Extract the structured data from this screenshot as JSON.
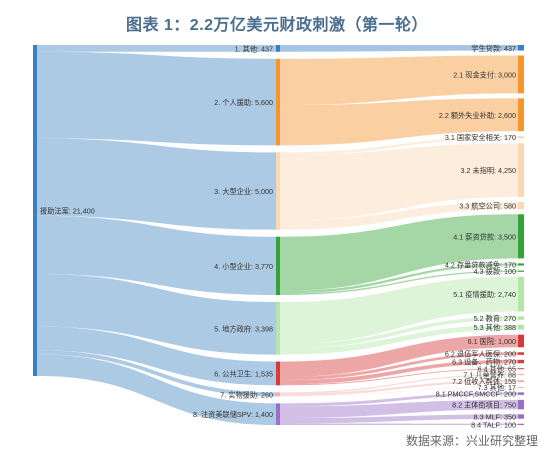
{
  "title": "图表 1：2.2万亿美元财政刺激（第一轮）",
  "source": "数据来源：兴业研究整理",
  "chart_data": {
    "type": "sankey",
    "units": "亿美元",
    "root": {
      "name": "援助法案",
      "value": 21400,
      "label": "援助法案: 21,400",
      "color": "#3a7fc1"
    },
    "categories": [
      {
        "id": "c1",
        "name": "1. 其他",
        "value": 437,
        "label": "1. 其他: 437",
        "color": "#3a7fc1"
      },
      {
        "id": "c2",
        "name": "2. 个人援助",
        "value": 5600,
        "label": "2. 个人援助: 5,600",
        "color": "#f5952e"
      },
      {
        "id": "c3",
        "name": "3. 大型企业",
        "value": 5000,
        "label": "3. 大型企业: 5,000",
        "color": "#fbd8b4"
      },
      {
        "id": "c4",
        "name": "4. 小型企业",
        "value": 3770,
        "label": "4. 小型企业: 3,770",
        "color": "#35a33a"
      },
      {
        "id": "c5",
        "name": "5. 地方政府",
        "value": 3398,
        "label": "5. 地方政府: 3,398",
        "color": "#b3e6a9"
      },
      {
        "id": "c6",
        "name": "6. 公共卫生",
        "value": 1535,
        "label": "6. 公共卫生: 1,535",
        "color": "#d63a3a"
      },
      {
        "id": "c7",
        "name": "7. 实物援助",
        "value": 260,
        "label": "7. 实物援助: 260",
        "color": "#f3aeae"
      },
      {
        "id": "c8",
        "name": "8. 注资美联储SPV",
        "value": 1400,
        "label": "8. 注资美联储SPV: 1,400",
        "color": "#9a70c6"
      }
    ],
    "items": [
      {
        "parent": "c1",
        "name": "学生贷款",
        "value": 437,
        "label": "学生贷款: 437"
      },
      {
        "parent": "c2",
        "name": "2.1 现金支付",
        "value": 3000,
        "label": "2.1 现金支付: 3,000"
      },
      {
        "parent": "c2",
        "name": "2.2 额外失业补助",
        "value": 2600,
        "label": "2.2 额外失业补助: 2,600"
      },
      {
        "parent": "c3",
        "name": "3.1 国家安全相关",
        "value": 170,
        "label": "3.1 国家安全相关: 170"
      },
      {
        "parent": "c3",
        "name": "3.2 未指明",
        "value": 4250,
        "label": "3.2 未指明: 4,250"
      },
      {
        "parent": "c3",
        "name": "3.3 航空公司",
        "value": 580,
        "label": "3.3 航空公司: 580"
      },
      {
        "parent": "c4",
        "name": "4.1 薪资贷款",
        "value": 3500,
        "label": "4.1 薪资贷款: 3,500"
      },
      {
        "parent": "c4",
        "name": "4.2 存量贷款减免",
        "value": 170,
        "label": "4.2 存量贷款减免: 170"
      },
      {
        "parent": "c4",
        "name": "4.3 拨款",
        "value": 100,
        "label": "4.3 拨款: 100"
      },
      {
        "parent": "c5",
        "name": "5.1 疫情援助",
        "value": 2740,
        "label": "5.1 疫情援助: 2,740"
      },
      {
        "parent": "c5",
        "name": "5.2 教育",
        "value": 270,
        "label": "5.2 教育: 270"
      },
      {
        "parent": "c5",
        "name": "5.3 其他",
        "value": 388,
        "label": "5.3 其他: 388"
      },
      {
        "parent": "c6",
        "name": "6.1 医院",
        "value": 1000,
        "label": "6.1 医院: 1,000"
      },
      {
        "parent": "c6",
        "name": "6.2 退伍军人医保",
        "value": 200,
        "label": "6.2 退伍军人医保: 200"
      },
      {
        "parent": "c6",
        "name": "6.3 设备、药物",
        "value": 270,
        "label": "6.3 设备、药物: 270"
      },
      {
        "parent": "c6",
        "name": "6.4 其他",
        "value": 65,
        "label": "6.4 其他: 65"
      },
      {
        "parent": "c7",
        "name": "7.1 儿童营养",
        "value": 88,
        "label": "7.1 儿童营养: 88"
      },
      {
        "parent": "c7",
        "name": "7.2 低收入群体",
        "value": 155,
        "label": "7.2 低收入群体: 155"
      },
      {
        "parent": "c7",
        "name": "7.3 其他",
        "value": 17,
        "label": "7.3 其他: 17"
      },
      {
        "parent": "c8",
        "name": "8.1 PMCCF,SMCCF",
        "value": 200,
        "label": "8.1 PMCCF,SMCCF: 200"
      },
      {
        "parent": "c8",
        "name": "8.2 主体街项目",
        "value": 750,
        "label": "8.2 主体街项目: 750"
      },
      {
        "parent": "c8",
        "name": "8.3 MLF",
        "value": 350,
        "label": "8.3 MLF: 350"
      },
      {
        "parent": "c8",
        "name": "8.4 TALF",
        "value": 100,
        "label": "8.4 TALF: 100"
      }
    ]
  }
}
